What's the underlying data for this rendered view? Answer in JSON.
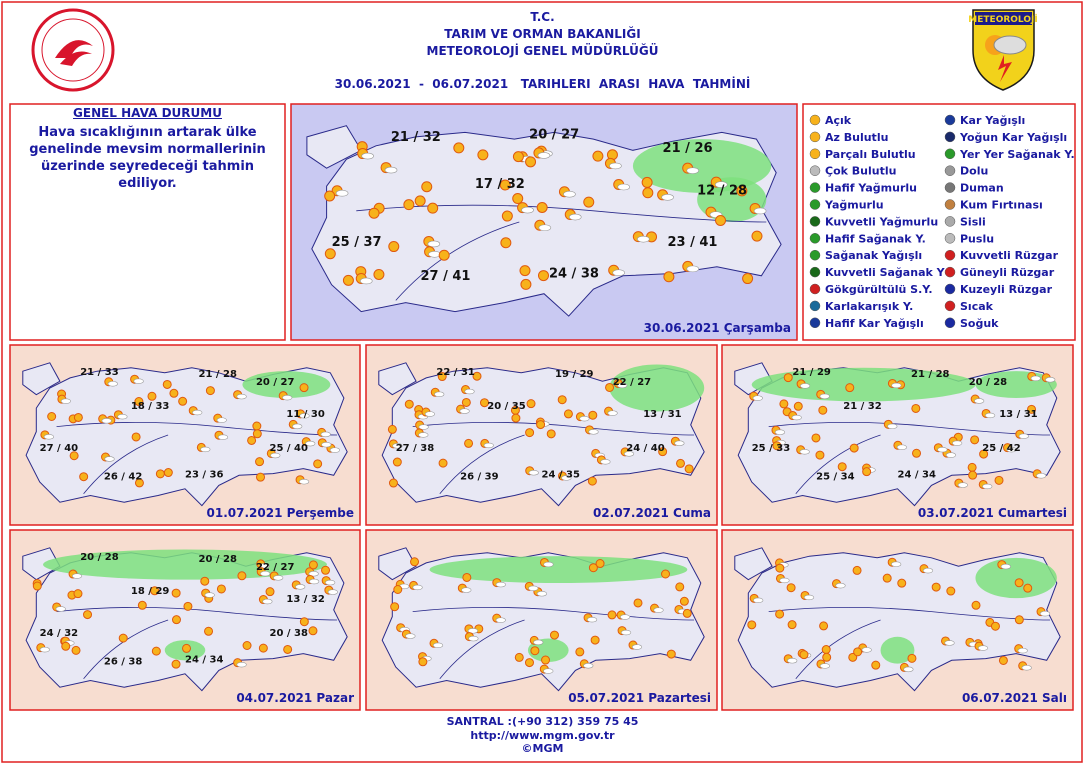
{
  "header": {
    "line1": "T.C.",
    "line2": "TARIM VE ORMAN BAKANLIĞI",
    "line3": "METEOROLOJİ  GENEL  MÜDÜRLÜĞÜ",
    "period": "30.06.2021  -  06.07.2021   TARIHLERI  ARASI  HAVA  TAHMİNİ",
    "logo_right": "METEOROLOJİ"
  },
  "general": {
    "title": "GENEL HAVA DURUMU",
    "text": "Hava sıcaklığının artarak ülke genelinde mevsim normallerinin üzerinde seyredeceği tahmin ediliyor."
  },
  "legend": [
    "Açık",
    "Az Bulutlu",
    "Parçalı Bulutlu",
    "Çok Bulutlu",
    "Hafif Yağmurlu",
    "Yağmurlu",
    "Kuvvetli Yağmurlu",
    "Hafif Sağanak Y.",
    "Sağanak Yağışlı",
    "Kuvvetli Sağanak Y",
    "Gökgürültülü S.Y.",
    "Karlakarışık Y.",
    "Hafif Kar Yağışlı",
    "Kar Yağışlı",
    "Yoğun Kar Yağışlı",
    "Yer Yer Sağanak Y.",
    "Dolu",
    "Duman",
    "Kum Fırtınası",
    "Sisli",
    "Puslu",
    "Kuvvetli Rüzgar",
    "Güneyli Rüzgar",
    "Kuzeyli Rüzgar",
    "Sıcak",
    "Soğuk"
  ],
  "maps": [
    {
      "date": "30.06.2021 Çarşamba",
      "temps": [
        "21 / 32",
        "20 / 27",
        "21 / 26",
        "17 / 32",
        "12 / 28",
        "25 / 37",
        "23 / 41",
        "27 / 41",
        "24 / 38"
      ]
    },
    {
      "date": "01.07.2021 Perşembe",
      "temps": [
        "21 / 33",
        "21 / 28",
        "20 / 27",
        "18 / 33",
        "11 / 30",
        "27 / 40",
        "25 / 40",
        "26 / 42",
        "23 / 36"
      ]
    },
    {
      "date": "02.07.2021 Cuma",
      "temps": [
        "22 / 31",
        "19 / 29",
        "22 / 27",
        "20 / 35",
        "13 / 31",
        "27 / 38",
        "24 / 40",
        "26 / 39",
        "24 / 35"
      ]
    },
    {
      "date": "03.07.2021 Cumartesi",
      "temps": [
        "21 / 29",
        "21 / 28",
        "20 / 28",
        "21 / 32",
        "13 / 31",
        "25 / 33",
        "25 / 42",
        "25 / 34",
        "24 / 34"
      ]
    },
    {
      "date": "04.07.2021 Pazar",
      "temps": [
        "20 / 28",
        "20 / 28",
        "22 / 27",
        "18 / 29",
        "13 / 32",
        "24 / 32",
        "20 / 38",
        "26 / 38",
        "24 / 34"
      ]
    },
    {
      "date": "05.07.2021 Pazartesi"
    },
    {
      "date": "06.07.2021 Salı"
    }
  ],
  "footer": {
    "phone": "SANTRAL :(+90 312) 359 75 45",
    "url": "http://www.mgm.gov.tr",
    "copyright": "©MGM"
  }
}
